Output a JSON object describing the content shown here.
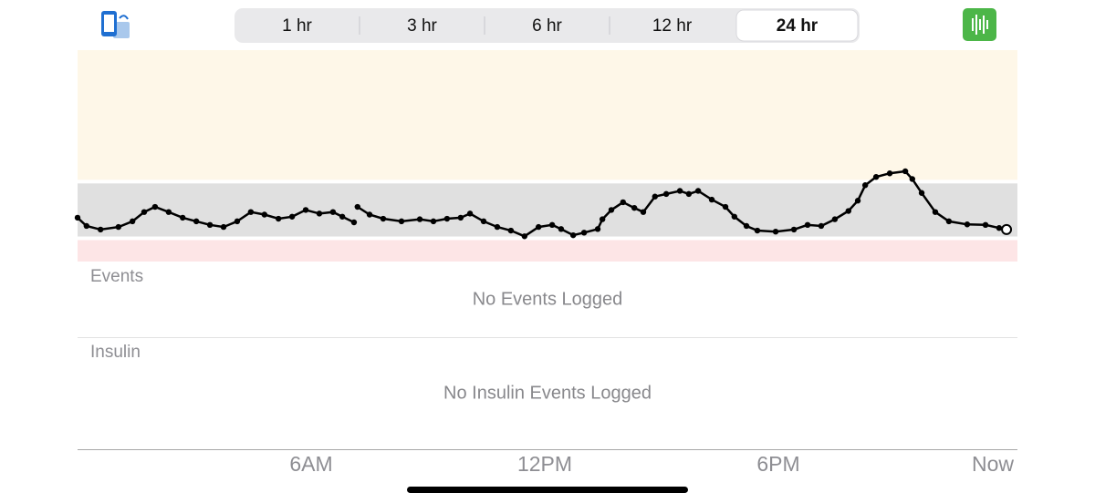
{
  "ui": {
    "segments": [
      "1 hr",
      "3 hr",
      "6 hr",
      "12 hr",
      "24 hr"
    ],
    "selected": 4,
    "events": {
      "title": "Events",
      "empty": "No Events Logged"
    },
    "insulin": {
      "title": "Insulin",
      "empty": "No Insulin Events Logged"
    }
  },
  "chart_data": {
    "type": "scatter",
    "x": [
      0,
      0.23,
      0.59,
      1.05,
      1.41,
      1.71,
      1.99,
      2.34,
      2.7,
      3.05,
      3.4,
      3.75,
      4.1,
      4.45,
      4.8,
      5.16,
      5.51,
      5.86,
      6.21,
      6.56,
      6.8,
      7.1,
      7.15,
      7.19,
      7.5,
      7.85,
      8.32,
      8.79,
      9.14,
      9.49,
      9.84,
      10.08,
      10.43,
      10.78,
      11.13,
      11.48,
      11.84,
      12.19,
      12.42,
      12.73,
      13.01,
      13.36,
      13.48,
      13.71,
      14.01,
      14.3,
      14.53,
      14.83,
      15.12,
      15.47,
      15.7,
      15.94,
      16.29,
      16.64,
      16.87,
      17.18,
      17.46,
      17.93,
      18.4,
      18.75,
      19.1,
      19.45,
      19.8,
      20.04,
      20.23,
      20.51,
      20.86,
      21.26,
      21.44,
      21.68,
      22.03,
      22.38,
      22.85,
      23.32,
      23.67,
      23.86
    ],
    "values": [
      110,
      94,
      87,
      92,
      103,
      121,
      131,
      121,
      110,
      103,
      96,
      92,
      103,
      121,
      116,
      108,
      112,
      125,
      118,
      121,
      112,
      101,
      null,
      131,
      116,
      108,
      103,
      107,
      103,
      108,
      110,
      118,
      103,
      92,
      85,
      74,
      92,
      96,
      88,
      76,
      81,
      88,
      107,
      125,
      140,
      129,
      121,
      151,
      156,
      162,
      156,
      162,
      145,
      131,
      112,
      94,
      85,
      83,
      87,
      96,
      94,
      107,
      123,
      143,
      173,
      189,
      196,
      200,
      185,
      158,
      121,
      103,
      97,
      96,
      90,
      87
    ],
    "color": "#000000",
    "xlim": [
      0,
      24.14
    ],
    "ylim": [
      25,
      435
    ],
    "xticks": [
      {
        "value": 6,
        "label": "6AM"
      },
      {
        "value": 12,
        "label": "12PM"
      },
      {
        "value": 18,
        "label": "6PM"
      },
      {
        "value": 23.86,
        "label": "Now"
      }
    ],
    "bands": [
      {
        "range": [
          180,
          435
        ],
        "color": "#fef7e8"
      },
      {
        "range": [
          70,
          180
        ],
        "color": "#e0e0e0"
      },
      {
        "range": [
          25,
          70
        ],
        "color": "#fde5e6"
      }
    ]
  }
}
